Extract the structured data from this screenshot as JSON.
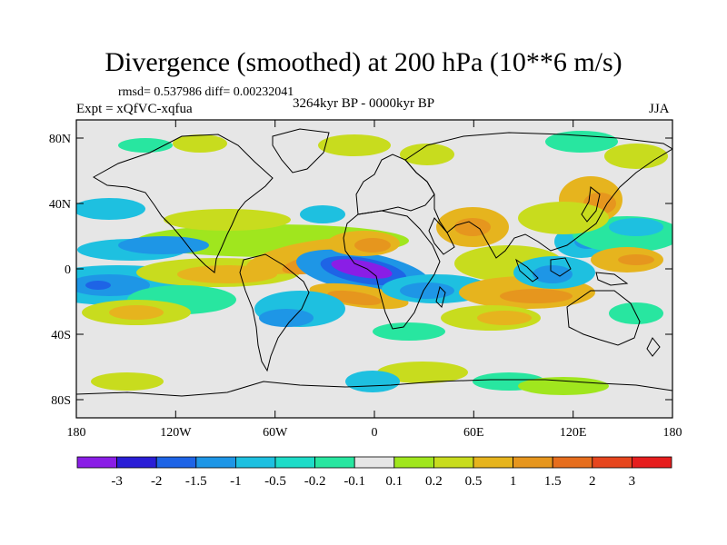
{
  "title": "Divergence (smoothed) at 200 hPa (10**6 m/s)",
  "stats": "rmsd= 0.537986  diff= 0.00232041",
  "experiment": "Expt = xQfVC-xqfua",
  "period": "3264kyr BP - 0000kyr BP",
  "season": "JJA",
  "lat_ticks": [
    "80N",
    "40N",
    "0",
    "40S",
    "80S"
  ],
  "lon_ticks": [
    "180",
    "120W",
    "60W",
    "0",
    "60E",
    "120E",
    "180"
  ],
  "colorbar": {
    "labels": [
      "-3",
      "-2",
      "-1.5",
      "-1",
      "-0.5",
      "-0.2",
      "-0.1",
      "0.1",
      "0.2",
      "0.5",
      "1",
      "1.5",
      "2",
      "3"
    ],
    "colors": [
      "#8a1ee6",
      "#2a1ed6",
      "#1e64e6",
      "#1e96e6",
      "#1ec0e0",
      "#1edcc8",
      "#28e6a0",
      "#e6e6e6",
      "#a0e61e",
      "#c8dc1e",
      "#e6b41e",
      "#e6961e",
      "#e66e1e",
      "#e6461e",
      "#e61e1e"
    ]
  },
  "anomaly_colors": {
    "neg3": "#8a1ee6",
    "neg2": "#2a1ed6",
    "neg15": "#1e64e6",
    "neg1": "#1e96e6",
    "neg05": "#1ec0e0",
    "neg02": "#1edcc8",
    "neg01": "#28e6a0",
    "pos01": "#a0e61e",
    "pos02": "#c8dc1e",
    "pos05": "#e6b41e",
    "pos1": "#e6961e",
    "pos15": "#e66e1e",
    "pos2": "#e6461e"
  },
  "background_color": "#e6e6e6"
}
